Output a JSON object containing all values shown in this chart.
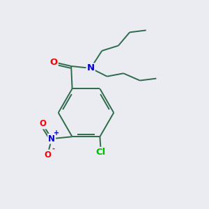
{
  "bg_color": "#ebebf2",
  "bond_color": "#2d6b4a",
  "atom_colors": {
    "O": "#ff0000",
    "N_amide": "#0000cc",
    "N_nitro": "#0000cc",
    "Cl": "#00bb00",
    "C": "#2d6b4a"
  },
  "bond_width": 1.4,
  "figsize": [
    3.0,
    3.0
  ],
  "dpi": 100
}
